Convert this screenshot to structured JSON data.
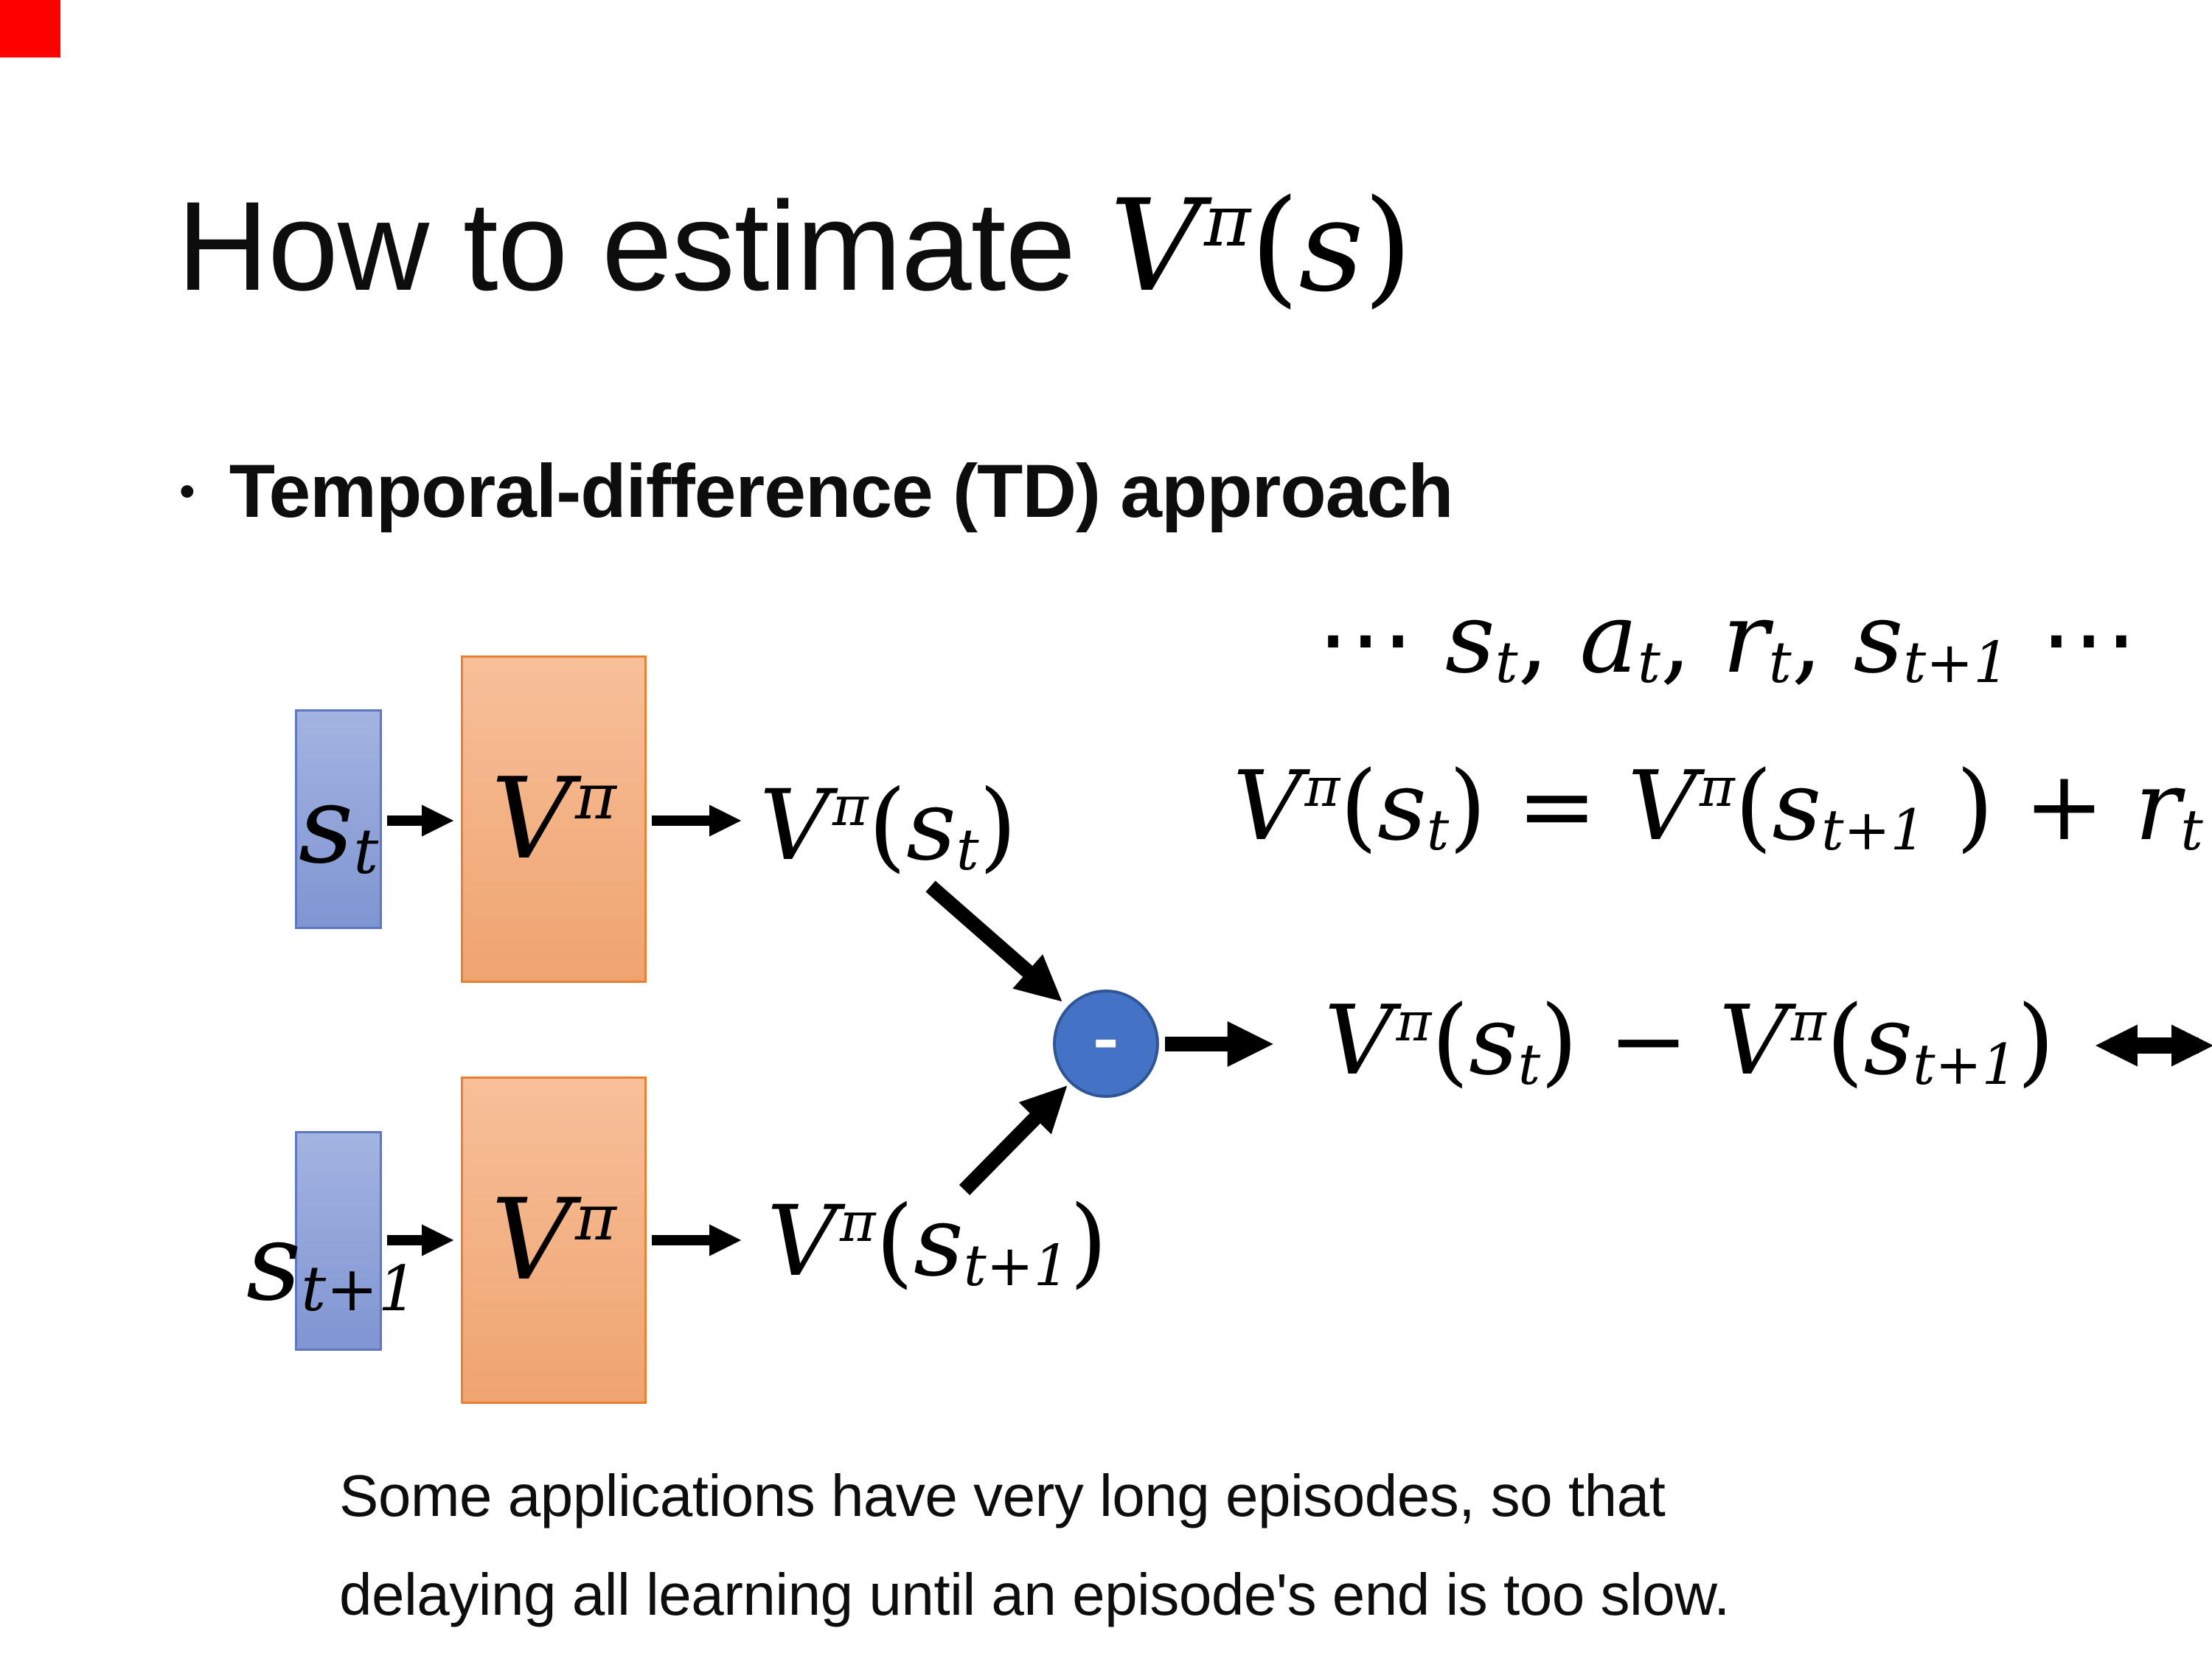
{
  "colors": {
    "background": "#FFFFFF",
    "text": "#0D0D0D",
    "corner_marker": "#FF0000",
    "state_box_fill_top": "#A3B4E1",
    "state_box_fill_bottom": "#8095D2",
    "state_box_border": "#5D77C4",
    "value_box_fill_top": "#F7BF99",
    "value_box_fill_bottom": "#EFA470",
    "value_box_border": "#E97F33",
    "diff_node_fill": "#4472C4",
    "diff_node_border": "#2F5597",
    "arrow": "#000000"
  },
  "title": {
    "prefix": "How to estimate "
  },
  "bullet": {
    "marker": "•",
    "text": "Temporal-difference (TD) approach"
  },
  "diagram": {
    "minus_label": "-"
  },
  "footer": {
    "line1": "Some applications have very long episodes, so that",
    "line2": "delaying all learning until an episode's end is too slow."
  },
  "expressions": {
    "title_math": [
      {
        "i": "V"
      },
      {
        "sup": "π"
      },
      {
        "p": "("
      },
      {
        "i": "s"
      },
      {
        "p": ")"
      }
    ],
    "trajectory": [
      {
        "p": "⋯ "
      },
      {
        "i": "s"
      },
      {
        "sub": "t"
      },
      {
        "p": ", "
      },
      {
        "i": "a"
      },
      {
        "sub": "t"
      },
      {
        "p": ", "
      },
      {
        "i": "r"
      },
      {
        "sub": "t"
      },
      {
        "p": ", "
      },
      {
        "i": "s"
      },
      {
        "sub": "t+1"
      },
      {
        "p": " ⋯"
      }
    ],
    "bellman": [
      {
        "i": "V"
      },
      {
        "sup": "π"
      },
      {
        "p": "("
      },
      {
        "i": "s"
      },
      {
        "sub": "t"
      },
      {
        "p": ") = "
      },
      {
        "i": "V"
      },
      {
        "sup": "π"
      },
      {
        "p": "("
      },
      {
        "i": "s"
      },
      {
        "sub": "t+1"
      },
      {
        "p": " ) + "
      },
      {
        "i": "r"
      },
      {
        "sub": "t"
      }
    ],
    "vpi": [
      {
        "i": "V"
      },
      {
        "sup": "π"
      }
    ],
    "st": [
      {
        "i": "s"
      },
      {
        "sub": "t"
      }
    ],
    "st1": [
      {
        "i": "s"
      },
      {
        "sub": "t+1"
      }
    ],
    "vpi_st": [
      {
        "i": "V"
      },
      {
        "sup": "π"
      },
      {
        "p": "("
      },
      {
        "i": "s"
      },
      {
        "sub": "t"
      },
      {
        "p": ")"
      }
    ],
    "vpi_st1": [
      {
        "i": "V"
      },
      {
        "sup": "π"
      },
      {
        "p": "("
      },
      {
        "i": "s"
      },
      {
        "sub": "t+1"
      },
      {
        "p": ")"
      }
    ],
    "result": [
      {
        "i": "V"
      },
      {
        "sup": "π"
      },
      {
        "p": "("
      },
      {
        "i": "s"
      },
      {
        "sub": "t"
      },
      {
        "p": ") − "
      },
      {
        "i": "V"
      },
      {
        "sup": "π"
      },
      {
        "p": "("
      },
      {
        "i": "s"
      },
      {
        "sub": "t+1"
      },
      {
        "p": ")"
      }
    ],
    "rt": [
      {
        "i": "r"
      },
      {
        "sub": "t"
      }
    ]
  }
}
